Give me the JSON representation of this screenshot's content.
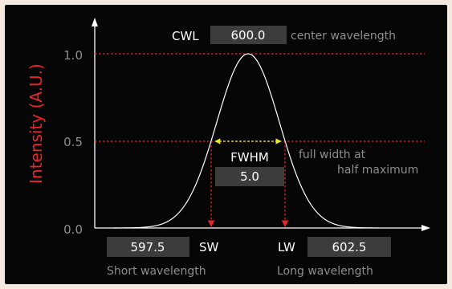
{
  "diagram": {
    "y_axis_label": "Intensity (A.U.)",
    "ticks": [
      "1.0",
      "0.5",
      "0.0"
    ],
    "cwl": {
      "label": "CWL",
      "value": "600.0",
      "description": "center wavelength"
    },
    "fwhm": {
      "label": "FWHM",
      "value": "5.0",
      "description_line1": "full width at",
      "description_line2": "half maximum"
    },
    "sw": {
      "value": "597.5",
      "label": "SW",
      "description": "Short wavelength"
    },
    "lw": {
      "label": "LW",
      "value": "602.5",
      "description": "Long wavelength"
    }
  },
  "colors": {
    "background": "#060606",
    "frame": "#f4e9de",
    "curve": "#ffffff",
    "reference": "#e8242c",
    "arrow": "#e8e81a",
    "box": "#3c3c3c",
    "muted_text": "#8d8d8d",
    "text": "#ffffff"
  }
}
